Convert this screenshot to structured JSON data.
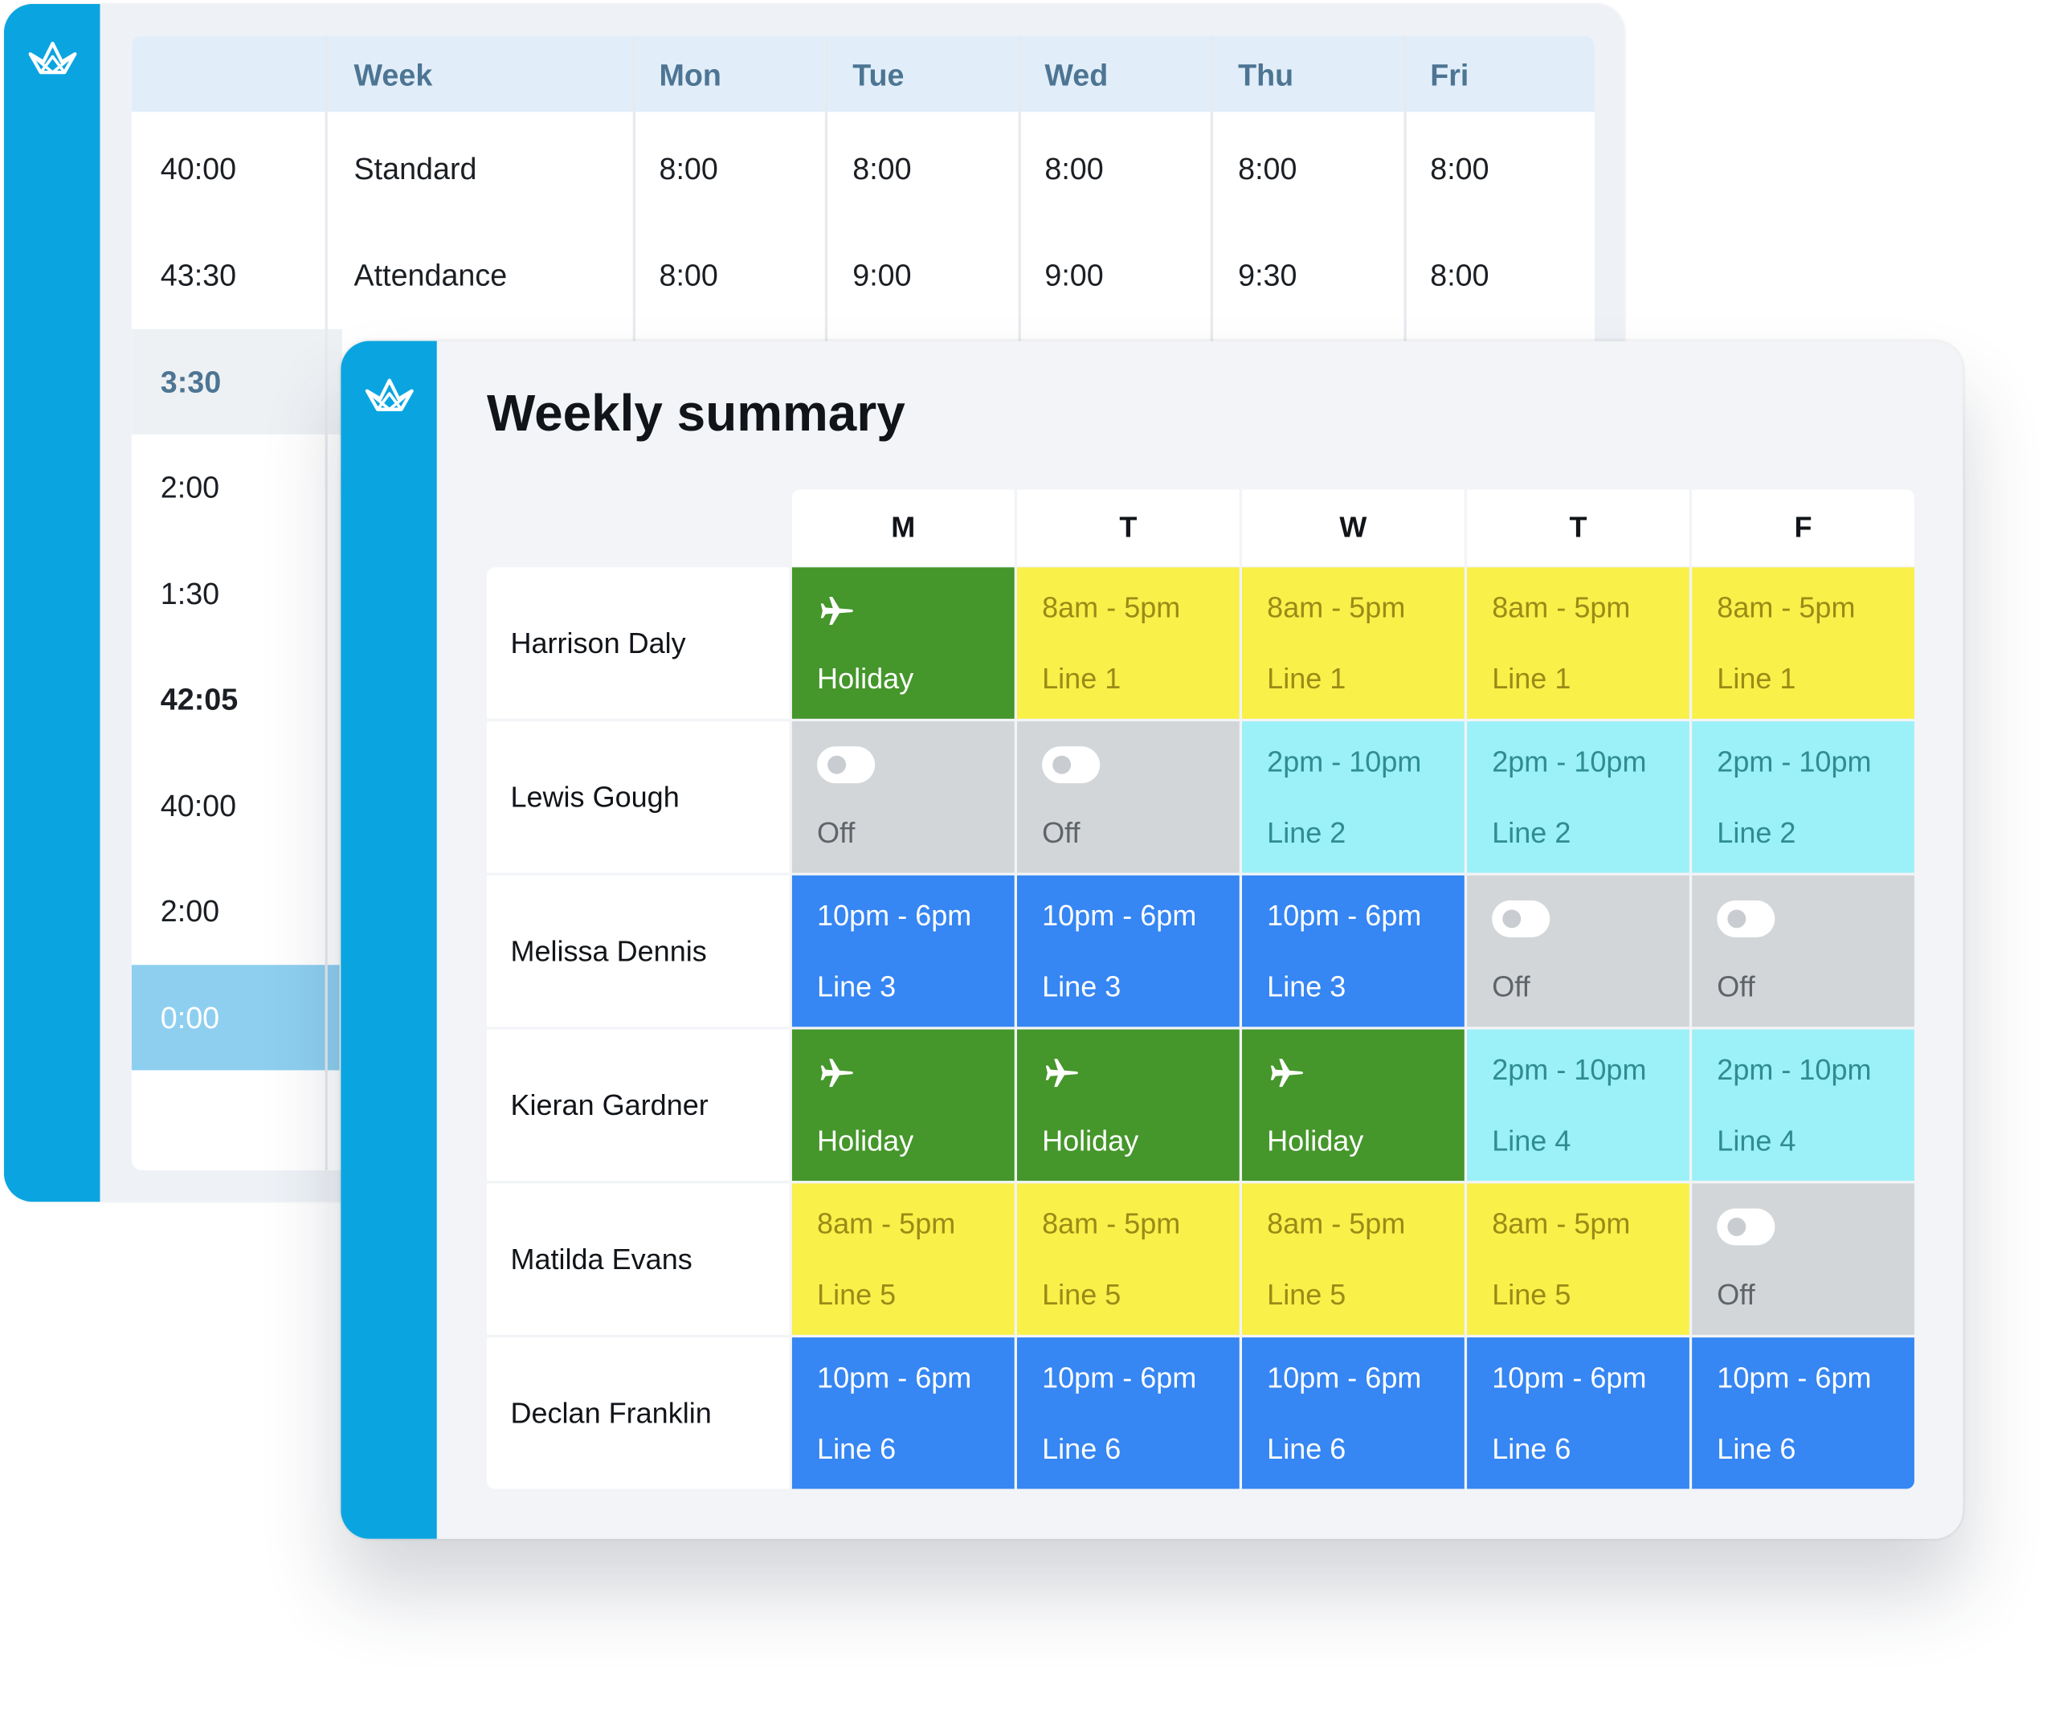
{
  "back_table": {
    "headers": [
      "Week",
      "Mon",
      "Tue",
      "Wed",
      "Thu",
      "Fri"
    ],
    "rows": [
      [
        "40:00",
        "Standard",
        "8:00",
        "8:00",
        "8:00",
        "8:00",
        "8:00"
      ],
      [
        "43:30",
        "Attendance",
        "8:00",
        "9:00",
        "9:00",
        "9:30",
        "8:00"
      ]
    ],
    "side_values": [
      "3:30",
      "2:00",
      "1:30",
      "42:05",
      "40:00",
      "2:00",
      "0:00"
    ]
  },
  "summary": {
    "title": "Weekly summary",
    "days": [
      "M",
      "T",
      "W",
      "T",
      "F"
    ],
    "employees": [
      {
        "name": "Harrison Daly",
        "shifts": [
          {
            "type": "holiday",
            "line1": "",
            "line2": "Holiday"
          },
          {
            "type": "day",
            "line1": "8am - 5pm",
            "line2": "Line 1"
          },
          {
            "type": "day",
            "line1": "8am - 5pm",
            "line2": "Line 1"
          },
          {
            "type": "day",
            "line1": "8am - 5pm",
            "line2": "Line 1"
          },
          {
            "type": "day",
            "line1": "8am - 5pm",
            "line2": "Line 1"
          }
        ]
      },
      {
        "name": "Lewis Gough",
        "shifts": [
          {
            "type": "off",
            "line1": "",
            "line2": "Off"
          },
          {
            "type": "off",
            "line1": "",
            "line2": "Off"
          },
          {
            "type": "late",
            "line1": "2pm - 10pm",
            "line2": "Line 2"
          },
          {
            "type": "late",
            "line1": "2pm - 10pm",
            "line2": "Line 2"
          },
          {
            "type": "late",
            "line1": "2pm - 10pm",
            "line2": "Line 2"
          }
        ]
      },
      {
        "name": "Melissa Dennis",
        "shifts": [
          {
            "type": "night",
            "line1": "10pm - 6pm",
            "line2": "Line 3"
          },
          {
            "type": "night",
            "line1": "10pm - 6pm",
            "line2": "Line 3"
          },
          {
            "type": "night",
            "line1": "10pm - 6pm",
            "line2": "Line 3"
          },
          {
            "type": "off",
            "line1": "",
            "line2": "Off"
          },
          {
            "type": "off",
            "line1": "",
            "line2": "Off"
          }
        ]
      },
      {
        "name": "Kieran Gardner",
        "shifts": [
          {
            "type": "holiday",
            "line1": "",
            "line2": "Holiday"
          },
          {
            "type": "holiday",
            "line1": "",
            "line2": "Holiday"
          },
          {
            "type": "holiday",
            "line1": "",
            "line2": "Holiday"
          },
          {
            "type": "late",
            "line1": "2pm - 10pm",
            "line2": "Line 4"
          },
          {
            "type": "late",
            "line1": "2pm - 10pm",
            "line2": "Line 4"
          }
        ]
      },
      {
        "name": "Matilda Evans",
        "shifts": [
          {
            "type": "day",
            "line1": "8am - 5pm",
            "line2": "Line 5"
          },
          {
            "type": "day",
            "line1": "8am - 5pm",
            "line2": "Line 5"
          },
          {
            "type": "day",
            "line1": "8am - 5pm",
            "line2": "Line 5"
          },
          {
            "type": "day",
            "line1": "8am - 5pm",
            "line2": "Line 5"
          },
          {
            "type": "off",
            "line1": "",
            "line2": "Off"
          }
        ]
      },
      {
        "name": "Declan Franklin",
        "shifts": [
          {
            "type": "night",
            "line1": "10pm - 6pm",
            "line2": "Line 6"
          },
          {
            "type": "night",
            "line1": "10pm - 6pm",
            "line2": "Line 6"
          },
          {
            "type": "night",
            "line1": "10pm - 6pm",
            "line2": "Line 6"
          },
          {
            "type": "night",
            "line1": "10pm - 6pm",
            "line2": "Line 6"
          },
          {
            "type": "night",
            "line1": "10pm - 6pm",
            "line2": "Line 6"
          }
        ]
      }
    ]
  },
  "colors": {
    "sidebar": "#0aa5e0",
    "holiday_bg": "#45962b",
    "holiday_text": "#ffffff",
    "day_bg": "#f9f04a",
    "day_text": "#9c8a16",
    "late_bg": "#9cf0f7",
    "late_text": "#2f8c92",
    "night_bg": "#3686f3",
    "night_text": "#ffffff",
    "off_bg": "#d3d6d8",
    "off_text": "#5f6469"
  },
  "icons": {
    "logo": "crown-logo-icon",
    "holiday": "airplane-icon",
    "off": "toggle-off-icon"
  }
}
